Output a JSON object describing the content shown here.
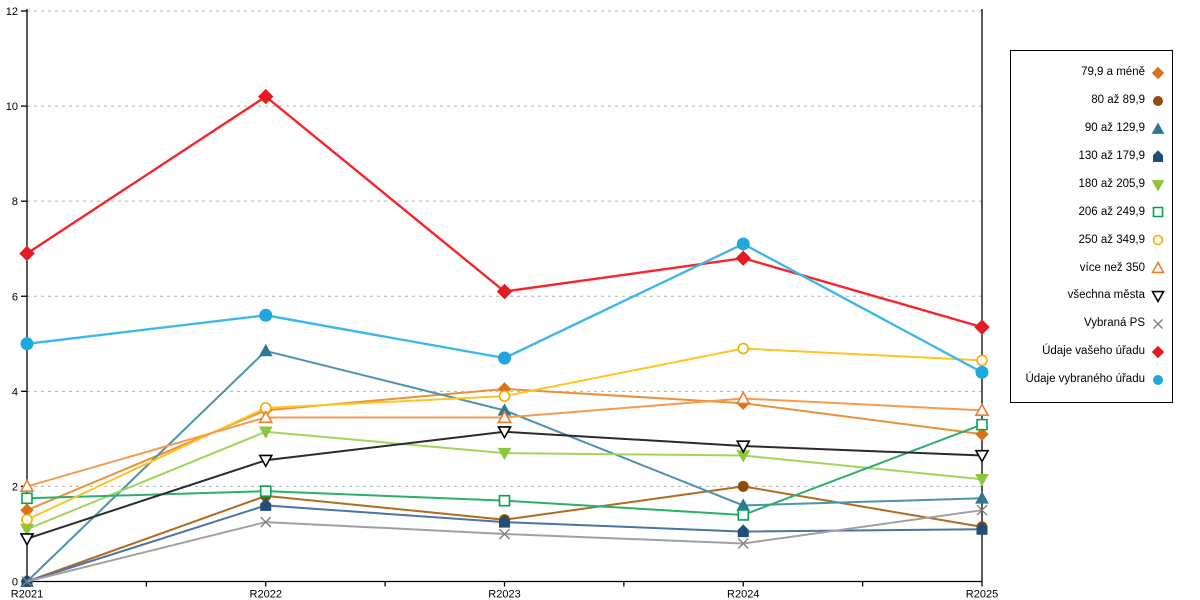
{
  "chart_data": {
    "type": "line",
    "title": "",
    "xlabel": "",
    "ylabel": "",
    "categories": [
      "R2021",
      "R2022",
      "R2023",
      "R2024",
      "R2025"
    ],
    "ylim": [
      0,
      12
    ],
    "yticks": [
      0,
      2,
      4,
      6,
      8,
      10,
      12
    ],
    "ytick_labels": [
      "0",
      "2",
      "4",
      "6",
      "8",
      "10",
      "12"
    ],
    "grid": "horizontal-dashed",
    "grid_color": "#b3b3b3",
    "axis_color": "#000000",
    "legend_position": "right-box",
    "series": [
      {
        "name": "79,9 a méně",
        "shape": "diamond",
        "filled": true,
        "line_color": "#e9913c",
        "marker_color": "#d9731a",
        "values": [
          1.5,
          3.6,
          4.05,
          3.75,
          3.1
        ]
      },
      {
        "name": "80 až 89,9",
        "shape": "circle",
        "filled": true,
        "line_color": "#b26a1e",
        "marker_color": "#8f4d0d",
        "values": [
          0,
          1.8,
          1.3,
          2.0,
          1.15
        ]
      },
      {
        "name": "90 až 129,9",
        "shape": "triangle-up",
        "filled": true,
        "line_color": "#4e93ad",
        "marker_color": "#2f7893",
        "values": [
          0,
          4.85,
          3.6,
          1.6,
          1.75
        ]
      },
      {
        "name": "130 až 179,9",
        "shape": "house",
        "filled": true,
        "line_color": "#4c74a8",
        "marker_color": "#1f4e79",
        "values": [
          0,
          1.6,
          1.25,
          1.05,
          1.1
        ]
      },
      {
        "name": "180 až 205,9",
        "shape": "triangle-down",
        "filled": true,
        "line_color": "#a3d55d",
        "marker_color": "#8cc63f",
        "values": [
          1.1,
          3.15,
          2.7,
          2.65,
          2.15
        ]
      },
      {
        "name": "206 až 249,9",
        "shape": "square",
        "filled": false,
        "line_color": "#2eae6c",
        "marker_color": "#00a550",
        "values": [
          1.75,
          1.9,
          1.7,
          1.4,
          3.3
        ]
      },
      {
        "name": "250 až 349,9",
        "shape": "circle",
        "filled": false,
        "line_color": "#ffc421",
        "marker_color": "#f0af00",
        "values": [
          1.3,
          3.65,
          3.9,
          4.9,
          4.65
        ]
      },
      {
        "name": "více než 350",
        "shape": "triangle-up",
        "filled": false,
        "line_color": "#f59b50",
        "marker_color": "#ed7d31",
        "values": [
          2.0,
          3.45,
          3.45,
          3.85,
          3.6
        ]
      },
      {
        "name": "všechna města",
        "shape": "triangle-down",
        "filled": false,
        "line_color": "#2b2b2b",
        "marker_color": "#000000",
        "values": [
          0.9,
          2.55,
          3.15,
          2.85,
          2.65
        ]
      },
      {
        "name": "Vybraná PS",
        "shape": "x",
        "filled": false,
        "line_color": "#a0a0a0",
        "marker_color": "#7f7f7f",
        "values": [
          0,
          1.25,
          1.0,
          0.8,
          1.5
        ]
      },
      {
        "name": "Údaje vašeho úřadu",
        "shape": "diamond",
        "filled": true,
        "line_color": "#f5252b",
        "marker_color": "#e31b23",
        "values": [
          6.9,
          10.2,
          6.1,
          6.8,
          5.35
        ]
      },
      {
        "name": "Údaje vybraného úřadu",
        "shape": "circle",
        "filled": true,
        "line_color": "#3db7ec",
        "marker_color": "#1fa7e0",
        "values": [
          5.0,
          5.6,
          4.7,
          7.1,
          4.4
        ]
      }
    ]
  }
}
